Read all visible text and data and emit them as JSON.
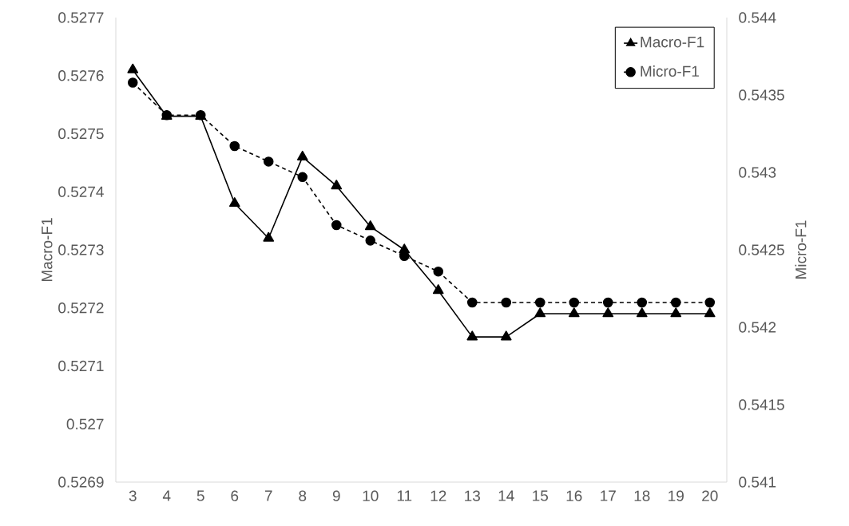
{
  "chart_data": {
    "type": "line",
    "ylabel": "Macro-F1",
    "y2label": "Micro-F1",
    "categories": [
      "3",
      "4",
      "5",
      "6",
      "7",
      "8",
      "9",
      "10",
      "11",
      "12",
      "13",
      "14",
      "15",
      "16",
      "17",
      "18",
      "19",
      "20"
    ],
    "series": [
      {
        "name": "Macro-F1",
        "color": "#000000",
        "marker": "triangle",
        "line_style": "solid",
        "values": [
          0.52761,
          0.52753,
          0.52753,
          0.52738,
          0.52732,
          0.52746,
          0.52741,
          0.52734,
          0.5273,
          0.52723,
          0.52715,
          0.52715,
          0.52719,
          0.52719,
          0.52719,
          0.52719,
          0.52719,
          0.52719
        ]
      },
      {
        "name": "Micro-F1",
        "color": "#000000",
        "marker": "circle",
        "line_style": "dashed",
        "axis": "y2",
        "values": [
          0.54358,
          0.54337,
          0.54337,
          0.54317,
          0.54307,
          0.54297,
          0.54266,
          0.54256,
          0.54246,
          0.54236,
          0.54216,
          0.54216,
          0.54216,
          0.54216,
          0.54216,
          0.54216,
          0.54216,
          0.54216
        ]
      }
    ],
    "ylim": [
      0.5269,
      0.5277
    ],
    "yticks": [
      0.5269,
      0.527,
      0.5271,
      0.5272,
      0.5273,
      0.5274,
      0.5275,
      0.5276,
      0.5277
    ],
    "y2lim": [
      0.541,
      0.544
    ],
    "y2ticks": [
      0.541,
      0.5415,
      0.542,
      0.5425,
      0.543,
      0.5435,
      0.544
    ],
    "legend": "top right",
    "grid": false
  }
}
